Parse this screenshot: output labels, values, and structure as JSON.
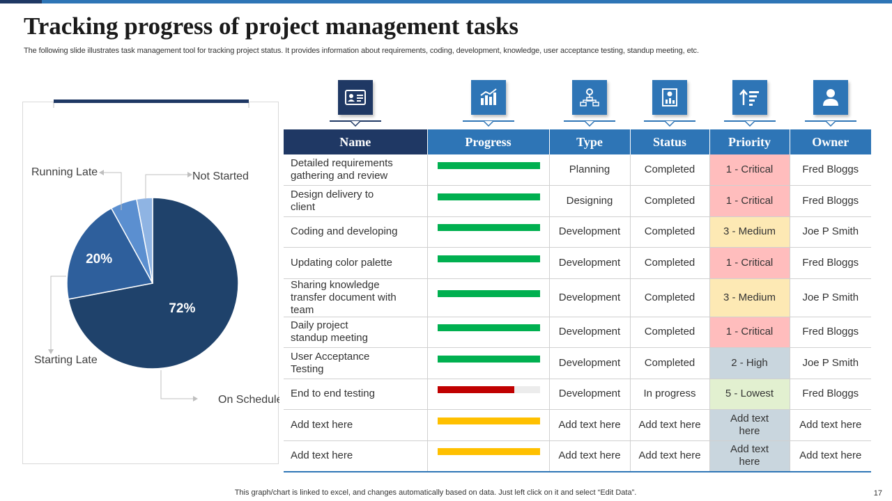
{
  "slide": {
    "title": "Tracking progress of project management tasks",
    "subtitle": "The following slide illustrates task management tool for tracking project status. It provides information about requirements, coding, development, knowledge, user acceptance testing, standup meeting, etc.",
    "footer": "This graph/chart is linked to excel,  and changes automatically based on data. Just left click on it and select “Edit Data”.",
    "page_number": "17"
  },
  "colors": {
    "primary_blue": "#2e75b6",
    "dark_navy": "#1f3864",
    "progress_green": "#00b050",
    "progress_red": "#c00000",
    "progress_yellow": "#ffc000",
    "critical_bg": "#ffbdbd",
    "medium_bg": "#fde9b4",
    "high_bg": "#c9d6de",
    "lowest_bg": "#e2f0d0",
    "placeholder_bg": "#c9d6de"
  },
  "chart_data": {
    "type": "pie",
    "slices": [
      {
        "label": "On Schedule",
        "value": 72,
        "data_label": "72%",
        "color": "#1f426b"
      },
      {
        "label": "Starting Late",
        "value": 20,
        "data_label": "20%",
        "color": "#2e5f9c"
      },
      {
        "label": "Running Late",
        "value": 5,
        "data_label": "",
        "color": "#5b8fd0"
      },
      {
        "label": "Not Started",
        "value": 3,
        "data_label": "",
        "color": "#8fb4e3"
      }
    ]
  },
  "table": {
    "icons": [
      "id-card-icon",
      "growth-chart-icon",
      "hierarchy-icon",
      "report-icon",
      "sort-priority-icon",
      "user-icon"
    ],
    "headers": [
      "Name",
      "Progress",
      "Type",
      "Status",
      "Priority",
      "Owner"
    ],
    "rows": [
      {
        "name": "Detailed requirements gathering and review",
        "progress": 1.0,
        "progress_color": "#00b050",
        "type": "Planning",
        "status": "Completed",
        "priority": "1 -  Critical",
        "priority_bg": "#ffbdbd",
        "owner": "Fred Bloggs"
      },
      {
        "name": "Design delivery to client",
        "progress": 1.0,
        "progress_color": "#00b050",
        "type": "Designing",
        "status": "Completed",
        "priority": "1 -  Critical",
        "priority_bg": "#ffbdbd",
        "owner": "Fred Bloggs"
      },
      {
        "name": "Coding and developing",
        "progress": 1.0,
        "progress_color": "#00b050",
        "type": "Development",
        "status": "Completed",
        "priority": "3 - Medium",
        "priority_bg": "#fde9b4",
        "owner": "Joe P Smith"
      },
      {
        "name": "Updating color palette",
        "progress": 1.0,
        "progress_color": "#00b050",
        "type": "Development",
        "status": "Completed",
        "priority": "1 -  Critical",
        "priority_bg": "#ffbdbd",
        "owner": "Fred Bloggs"
      },
      {
        "name": "Sharing knowledge transfer document with team",
        "progress": 1.0,
        "progress_color": "#00b050",
        "type": "Development",
        "status": "Completed",
        "priority": "3 - Medium",
        "priority_bg": "#fde9b4",
        "owner": "Joe P Smith"
      },
      {
        "name": "Daily project standup meeting",
        "progress": 1.0,
        "progress_color": "#00b050",
        "type": "Development",
        "status": "Completed",
        "priority": "1 -  Critical",
        "priority_bg": "#ffbdbd",
        "owner": "Fred Bloggs"
      },
      {
        "name": "User Acceptance Testing",
        "progress": 1.0,
        "progress_color": "#00b050",
        "type": "Development",
        "status": "Completed",
        "priority": "2 -  High",
        "priority_bg": "#c9d6de",
        "owner": "Joe P Smith"
      },
      {
        "name": "End to end testing",
        "progress": 0.75,
        "progress_color": "#c00000",
        "type": "Development",
        "status": "In progress",
        "priority": "5 -  Lowest",
        "priority_bg": "#e2f0d0",
        "owner": "Fred Bloggs"
      },
      {
        "name": "Add text here",
        "progress": 1.0,
        "progress_color": "#ffc000",
        "type": "Add text here",
        "status": "Add text here",
        "priority": "Add text here",
        "priority_bg": "#c9d6de",
        "owner": "Add text here"
      },
      {
        "name": "Add text here",
        "progress": 1.0,
        "progress_color": "#ffc000",
        "type": "Add text here",
        "status": "Add text here",
        "priority": "Add text here",
        "priority_bg": "#c9d6de",
        "owner": "Add text here"
      }
    ]
  }
}
